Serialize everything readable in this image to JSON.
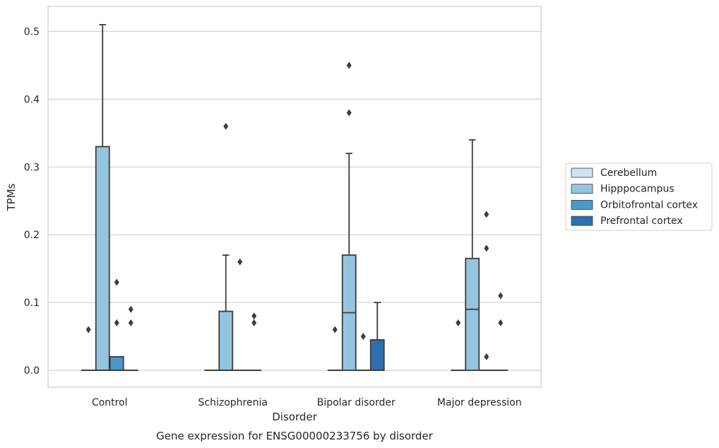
{
  "chart_data": {
    "type": "box",
    "caption": "Gene expression for ENSG00000233756 by disorder",
    "xlabel": "Disorder",
    "ylabel": "TPMs",
    "ylim": [
      -0.025,
      0.537
    ],
    "yticks": [
      0.0,
      0.1,
      0.2,
      0.3,
      0.4,
      0.5
    ],
    "ytick_labels": [
      "0.0",
      "0.1",
      "0.2",
      "0.3",
      "0.4",
      "0.5"
    ],
    "grid": "horizontal",
    "legend_placement": "center-right-outside",
    "categories": [
      "Control",
      "Schizophrenia",
      "Bipolar disorder",
      "Major depression"
    ],
    "series": [
      {
        "name": "Cerebellum",
        "color": "#d0e1f2",
        "boxes": [
          {
            "q1": 0,
            "median": 0,
            "q3": 0,
            "whisker_low": 0,
            "whisker_high": 0,
            "outliers": [
              0.06
            ]
          },
          {
            "q1": 0,
            "median": 0,
            "q3": 0,
            "whisker_low": 0,
            "whisker_high": 0,
            "outliers": []
          },
          {
            "q1": 0,
            "median": 0,
            "q3": 0,
            "whisker_low": 0,
            "whisker_high": 0,
            "outliers": [
              0.06
            ]
          },
          {
            "q1": 0,
            "median": 0,
            "q3": 0,
            "whisker_low": 0,
            "whisker_high": 0,
            "outliers": [
              0.07
            ]
          }
        ]
      },
      {
        "name": "Hipppocampus",
        "color": "#94c4df",
        "boxes": [
          {
            "q1": 0,
            "median": 0,
            "q3": 0.33,
            "whisker_low": 0,
            "whisker_high": 0.51,
            "outliers": []
          },
          {
            "q1": 0,
            "median": 0,
            "q3": 0.087,
            "whisker_low": 0,
            "whisker_high": 0.17,
            "outliers": [
              0.36
            ]
          },
          {
            "q1": 0,
            "median": 0.085,
            "q3": 0.17,
            "whisker_low": 0,
            "whisker_high": 0.32,
            "outliers": [
              0.45,
              0.38
            ]
          },
          {
            "q1": 0,
            "median": 0.09,
            "q3": 0.165,
            "whisker_low": 0,
            "whisker_high": 0.34,
            "outliers": []
          }
        ]
      },
      {
        "name": "Orbitofrontal cortex",
        "color": "#4a98c9",
        "boxes": [
          {
            "q1": 0,
            "median": 0,
            "q3": 0.02,
            "whisker_low": 0,
            "whisker_high": 0.02,
            "outliers": [
              0.13,
              0.07
            ]
          },
          {
            "q1": 0,
            "median": 0,
            "q3": 0,
            "whisker_low": 0,
            "whisker_high": 0,
            "outliers": [
              0.16
            ]
          },
          {
            "q1": 0,
            "median": 0,
            "q3": 0,
            "whisker_low": 0,
            "whisker_high": 0,
            "outliers": [
              0.05
            ]
          },
          {
            "q1": 0,
            "median": 0,
            "q3": 0,
            "whisker_low": 0,
            "whisker_high": 0,
            "outliers": [
              0.23,
              0.18,
              0.02
            ]
          }
        ]
      },
      {
        "name": "Prefrontal cortex",
        "color": "#2e6fad",
        "boxes": [
          {
            "q1": 0,
            "median": 0,
            "q3": 0,
            "whisker_low": 0,
            "whisker_high": 0,
            "outliers": [
              0.09,
              0.07
            ]
          },
          {
            "q1": 0,
            "median": 0,
            "q3": 0,
            "whisker_low": 0,
            "whisker_high": 0,
            "outliers": [
              0.08,
              0.07
            ]
          },
          {
            "q1": 0,
            "median": 0,
            "q3": 0.045,
            "whisker_low": 0,
            "whisker_high": 0.1,
            "outliers": []
          },
          {
            "q1": 0,
            "median": 0,
            "q3": 0,
            "whisker_low": 0,
            "whisker_high": 0,
            "outliers": [
              0.11,
              0.07
            ]
          }
        ]
      }
    ]
  }
}
